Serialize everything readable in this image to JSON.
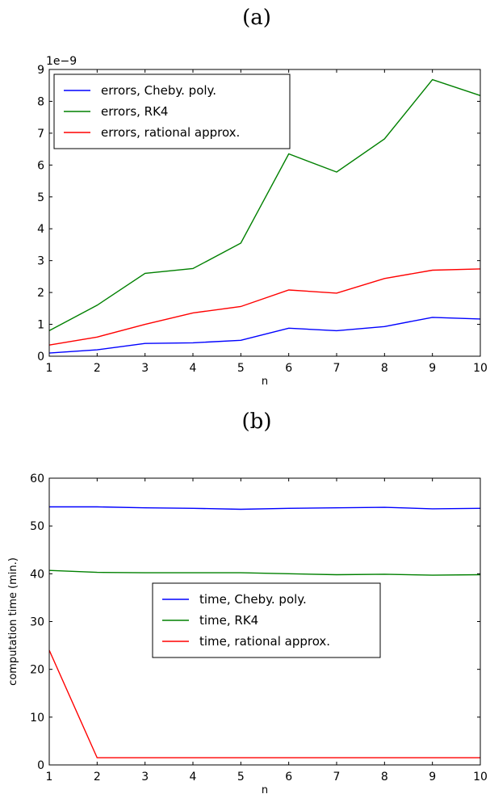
{
  "chart_data": [
    {
      "type": "line",
      "panel_label": "(a)",
      "x": [
        1,
        2,
        3,
        4,
        5,
        6,
        7,
        8,
        9,
        10
      ],
      "xlabel": "n",
      "ylabel": "",
      "xlim": [
        1,
        10
      ],
      "ylim": [
        0,
        9
      ],
      "y_scale_label": "1e−9",
      "xticks": [
        "1",
        "2",
        "3",
        "4",
        "5",
        "6",
        "7",
        "8",
        "9",
        "10"
      ],
      "yticks": [
        "0",
        "1",
        "2",
        "3",
        "4",
        "5",
        "6",
        "7",
        "8",
        "9"
      ],
      "grid": false,
      "legend_position": "upper-left",
      "series": [
        {
          "name": "errors, Cheby. poly.",
          "color": "#0000ff",
          "values": [
            0.1,
            0.2,
            0.4,
            0.42,
            0.5,
            0.88,
            0.8,
            0.93,
            1.22,
            1.17
          ]
        },
        {
          "name": "errors, RK4",
          "color": "#008000",
          "values": [
            0.8,
            1.6,
            2.6,
            2.75,
            3.55,
            6.35,
            5.78,
            6.82,
            8.68,
            8.18
          ]
        },
        {
          "name": "errors, rational approx.",
          "color": "#ff0000",
          "values": [
            0.35,
            0.6,
            1.0,
            1.36,
            1.56,
            2.08,
            1.98,
            2.44,
            2.7,
            2.74
          ]
        }
      ]
    },
    {
      "type": "line",
      "panel_label": "(b)",
      "x": [
        1,
        2,
        3,
        4,
        5,
        6,
        7,
        8,
        9,
        10
      ],
      "xlabel": "n",
      "ylabel": "computation time (min.)",
      "xlim": [
        1,
        10
      ],
      "ylim": [
        0,
        60
      ],
      "xticks": [
        "1",
        "2",
        "3",
        "4",
        "5",
        "6",
        "7",
        "8",
        "9",
        "10"
      ],
      "yticks": [
        "0",
        "10",
        "20",
        "30",
        "40",
        "50",
        "60"
      ],
      "grid": false,
      "legend_position": "center",
      "series": [
        {
          "name": "time, Cheby. poly.",
          "color": "#0000ff",
          "values": [
            54.0,
            54.0,
            53.8,
            53.7,
            53.5,
            53.7,
            53.8,
            53.9,
            53.6,
            53.7
          ]
        },
        {
          "name": "time, RK4",
          "color": "#008000",
          "values": [
            40.7,
            40.3,
            40.2,
            40.2,
            40.2,
            40.0,
            39.8,
            39.9,
            39.7,
            39.8
          ]
        },
        {
          "name": "time, rational approx.",
          "color": "#ff0000",
          "values": [
            24.0,
            1.5,
            1.5,
            1.5,
            1.5,
            1.5,
            1.5,
            1.5,
            1.5,
            1.5
          ]
        }
      ]
    }
  ]
}
